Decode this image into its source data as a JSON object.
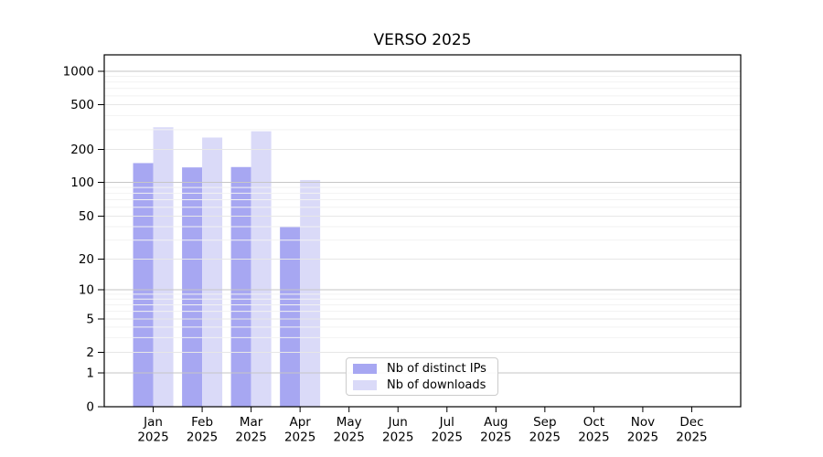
{
  "chart_data": {
    "type": "bar",
    "title": "VERSO 2025",
    "x_categories": [
      "Jan",
      "Feb",
      "Mar",
      "Apr",
      "May",
      "Jun",
      "Jul",
      "Aug",
      "Sep",
      "Oct",
      "Nov",
      "Dec"
    ],
    "x_year": "2025",
    "series": [
      {
        "name": "Nb of distinct IPs",
        "color": "#a7a7f2",
        "values": [
          150,
          137,
          138,
          40,
          0,
          0,
          0,
          0,
          0,
          0,
          0,
          0
        ]
      },
      {
        "name": "Nb of downloads",
        "color": "#dadaf8",
        "values": [
          315,
          255,
          290,
          105,
          0,
          0,
          0,
          0,
          0,
          0,
          0,
          0
        ]
      }
    ],
    "y_scale": "symlog",
    "y_ticks": [
      0,
      1,
      2,
      5,
      10,
      20,
      50,
      100,
      200,
      500,
      1000
    ],
    "y_minor_gridlines": [
      3,
      4,
      6,
      7,
      8,
      9,
      30,
      40,
      60,
      70,
      80,
      90,
      300,
      400,
      600,
      700,
      800,
      900
    ],
    "ylim": [
      0,
      1400
    ],
    "grid": true,
    "grid_above_bars": true,
    "legend_position": "lower center",
    "colors": {
      "grid_major_pow10": "#c6c6c6",
      "grid_major": "#e7e7e7",
      "grid_minor": "#f2f2f2",
      "axis": "#000000",
      "text": "#000000",
      "legend_border": "#cccccc"
    }
  }
}
